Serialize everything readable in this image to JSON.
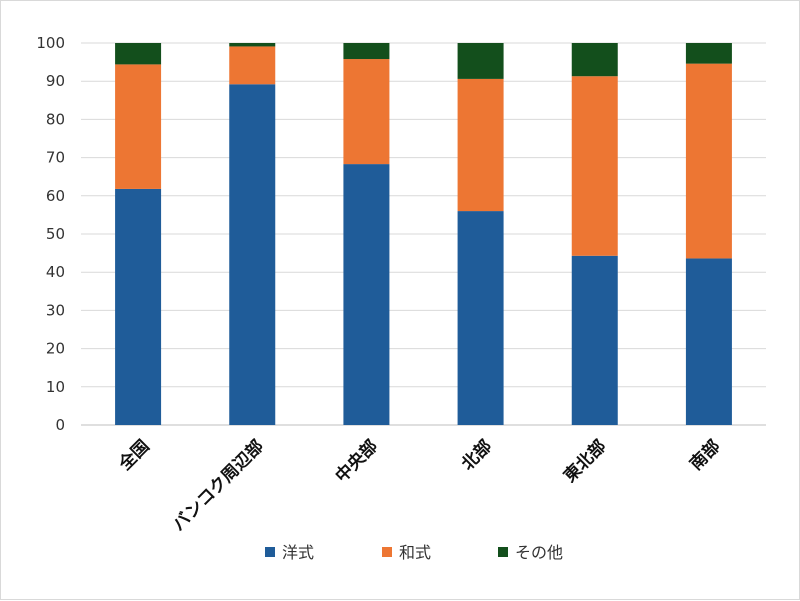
{
  "chart_data": {
    "type": "bar",
    "stacked": true,
    "categories": [
      "全国",
      "バンコク周辺部",
      "中央部",
      "北部",
      "東北部",
      "南部"
    ],
    "series": [
      {
        "name": "洋式",
        "color": "#1f5c99",
        "values": [
          61.8,
          89.2,
          68.3,
          56.0,
          44.3,
          43.6
        ]
      },
      {
        "name": "和式",
        "color": "#ed7633",
        "values": [
          32.6,
          9.9,
          27.5,
          34.6,
          47.0,
          51.0
        ]
      },
      {
        "name": "その他",
        "color": "#134f1c",
        "values": [
          5.6,
          0.9,
          4.2,
          9.4,
          8.7,
          5.4
        ]
      }
    ],
    "ylim": [
      0,
      100
    ],
    "yticks": [
      "0",
      "10",
      "20",
      "30",
      "40",
      "50",
      "60",
      "70",
      "80",
      "90",
      "100"
    ],
    "grid": true,
    "legend_position": "bottom",
    "title": "",
    "xlabel": "",
    "ylabel": ""
  }
}
